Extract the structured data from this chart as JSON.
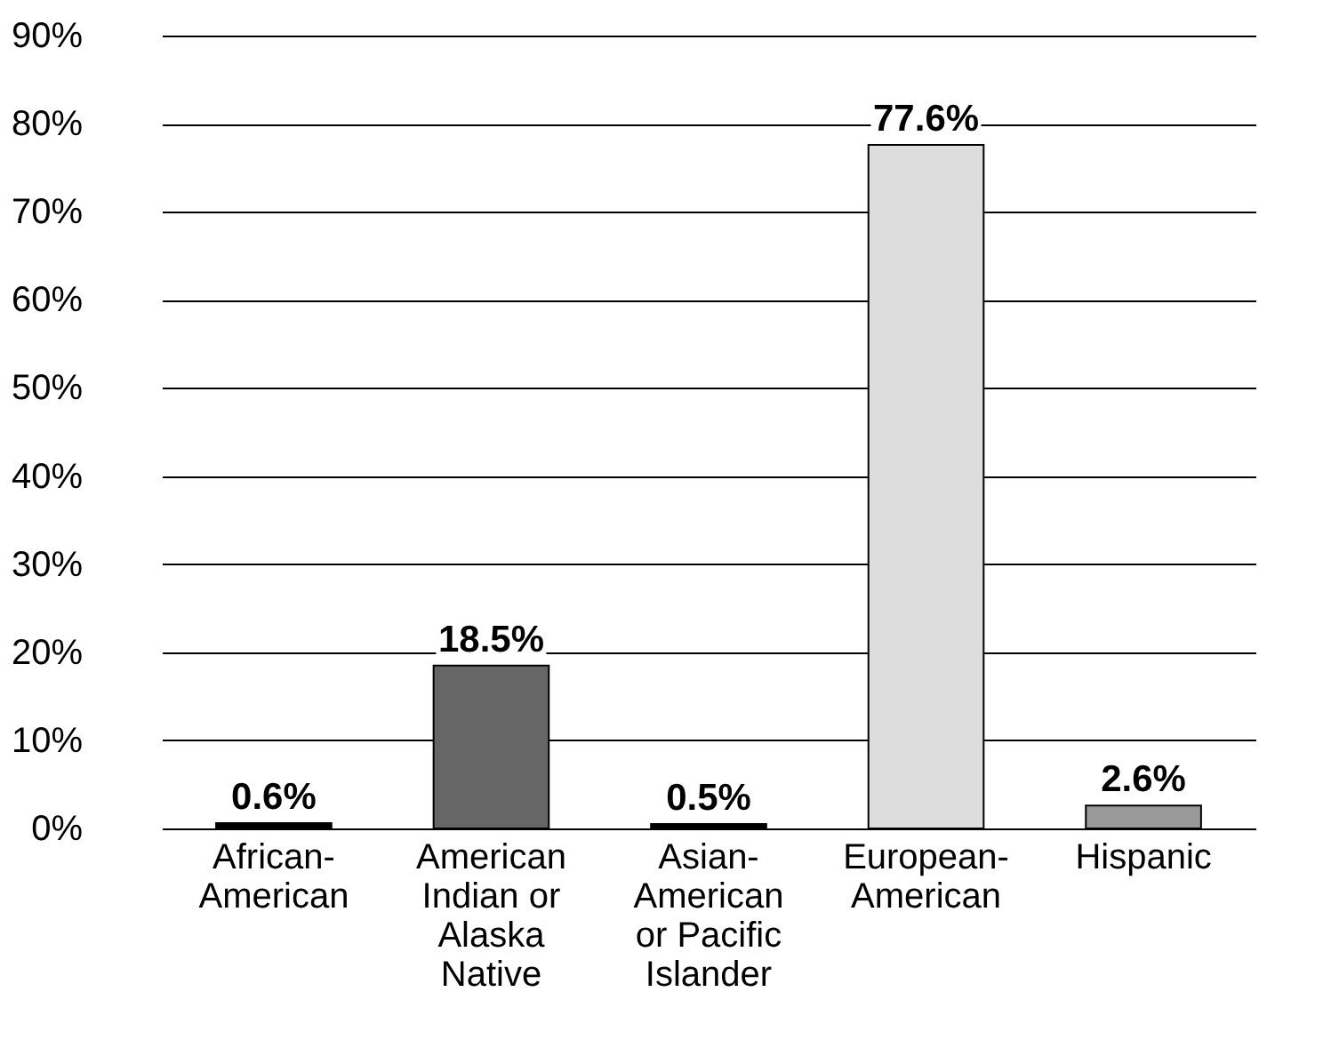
{
  "chart_data": {
    "type": "bar",
    "categories": [
      "African-American",
      "American Indian or Alaska Native",
      "Asian-American or Pacific Islander",
      "European-American",
      "Hispanic"
    ],
    "values": [
      0.6,
      18.5,
      0.5,
      77.6,
      2.6
    ],
    "colors": [
      "#000000",
      "#666666",
      "#000000",
      "#dddddd",
      "#999999"
    ],
    "value_labels": [
      "0.6%",
      "18.5%",
      "0.5%",
      "77.6%",
      "2.6%"
    ],
    "ylim": [
      0,
      90
    ],
    "yticks": [
      {
        "value": 0,
        "label": "0%"
      },
      {
        "value": 10,
        "label": "10%"
      },
      {
        "value": 20,
        "label": "20%"
      },
      {
        "value": 30,
        "label": "30%"
      },
      {
        "value": 40,
        "label": "40%"
      },
      {
        "value": 50,
        "label": "50%"
      },
      {
        "value": 60,
        "label": "60%"
      },
      {
        "value": 70,
        "label": "70%"
      },
      {
        "value": 80,
        "label": "80%"
      },
      {
        "value": 90,
        "label": "90%"
      }
    ],
    "grid": "y"
  }
}
